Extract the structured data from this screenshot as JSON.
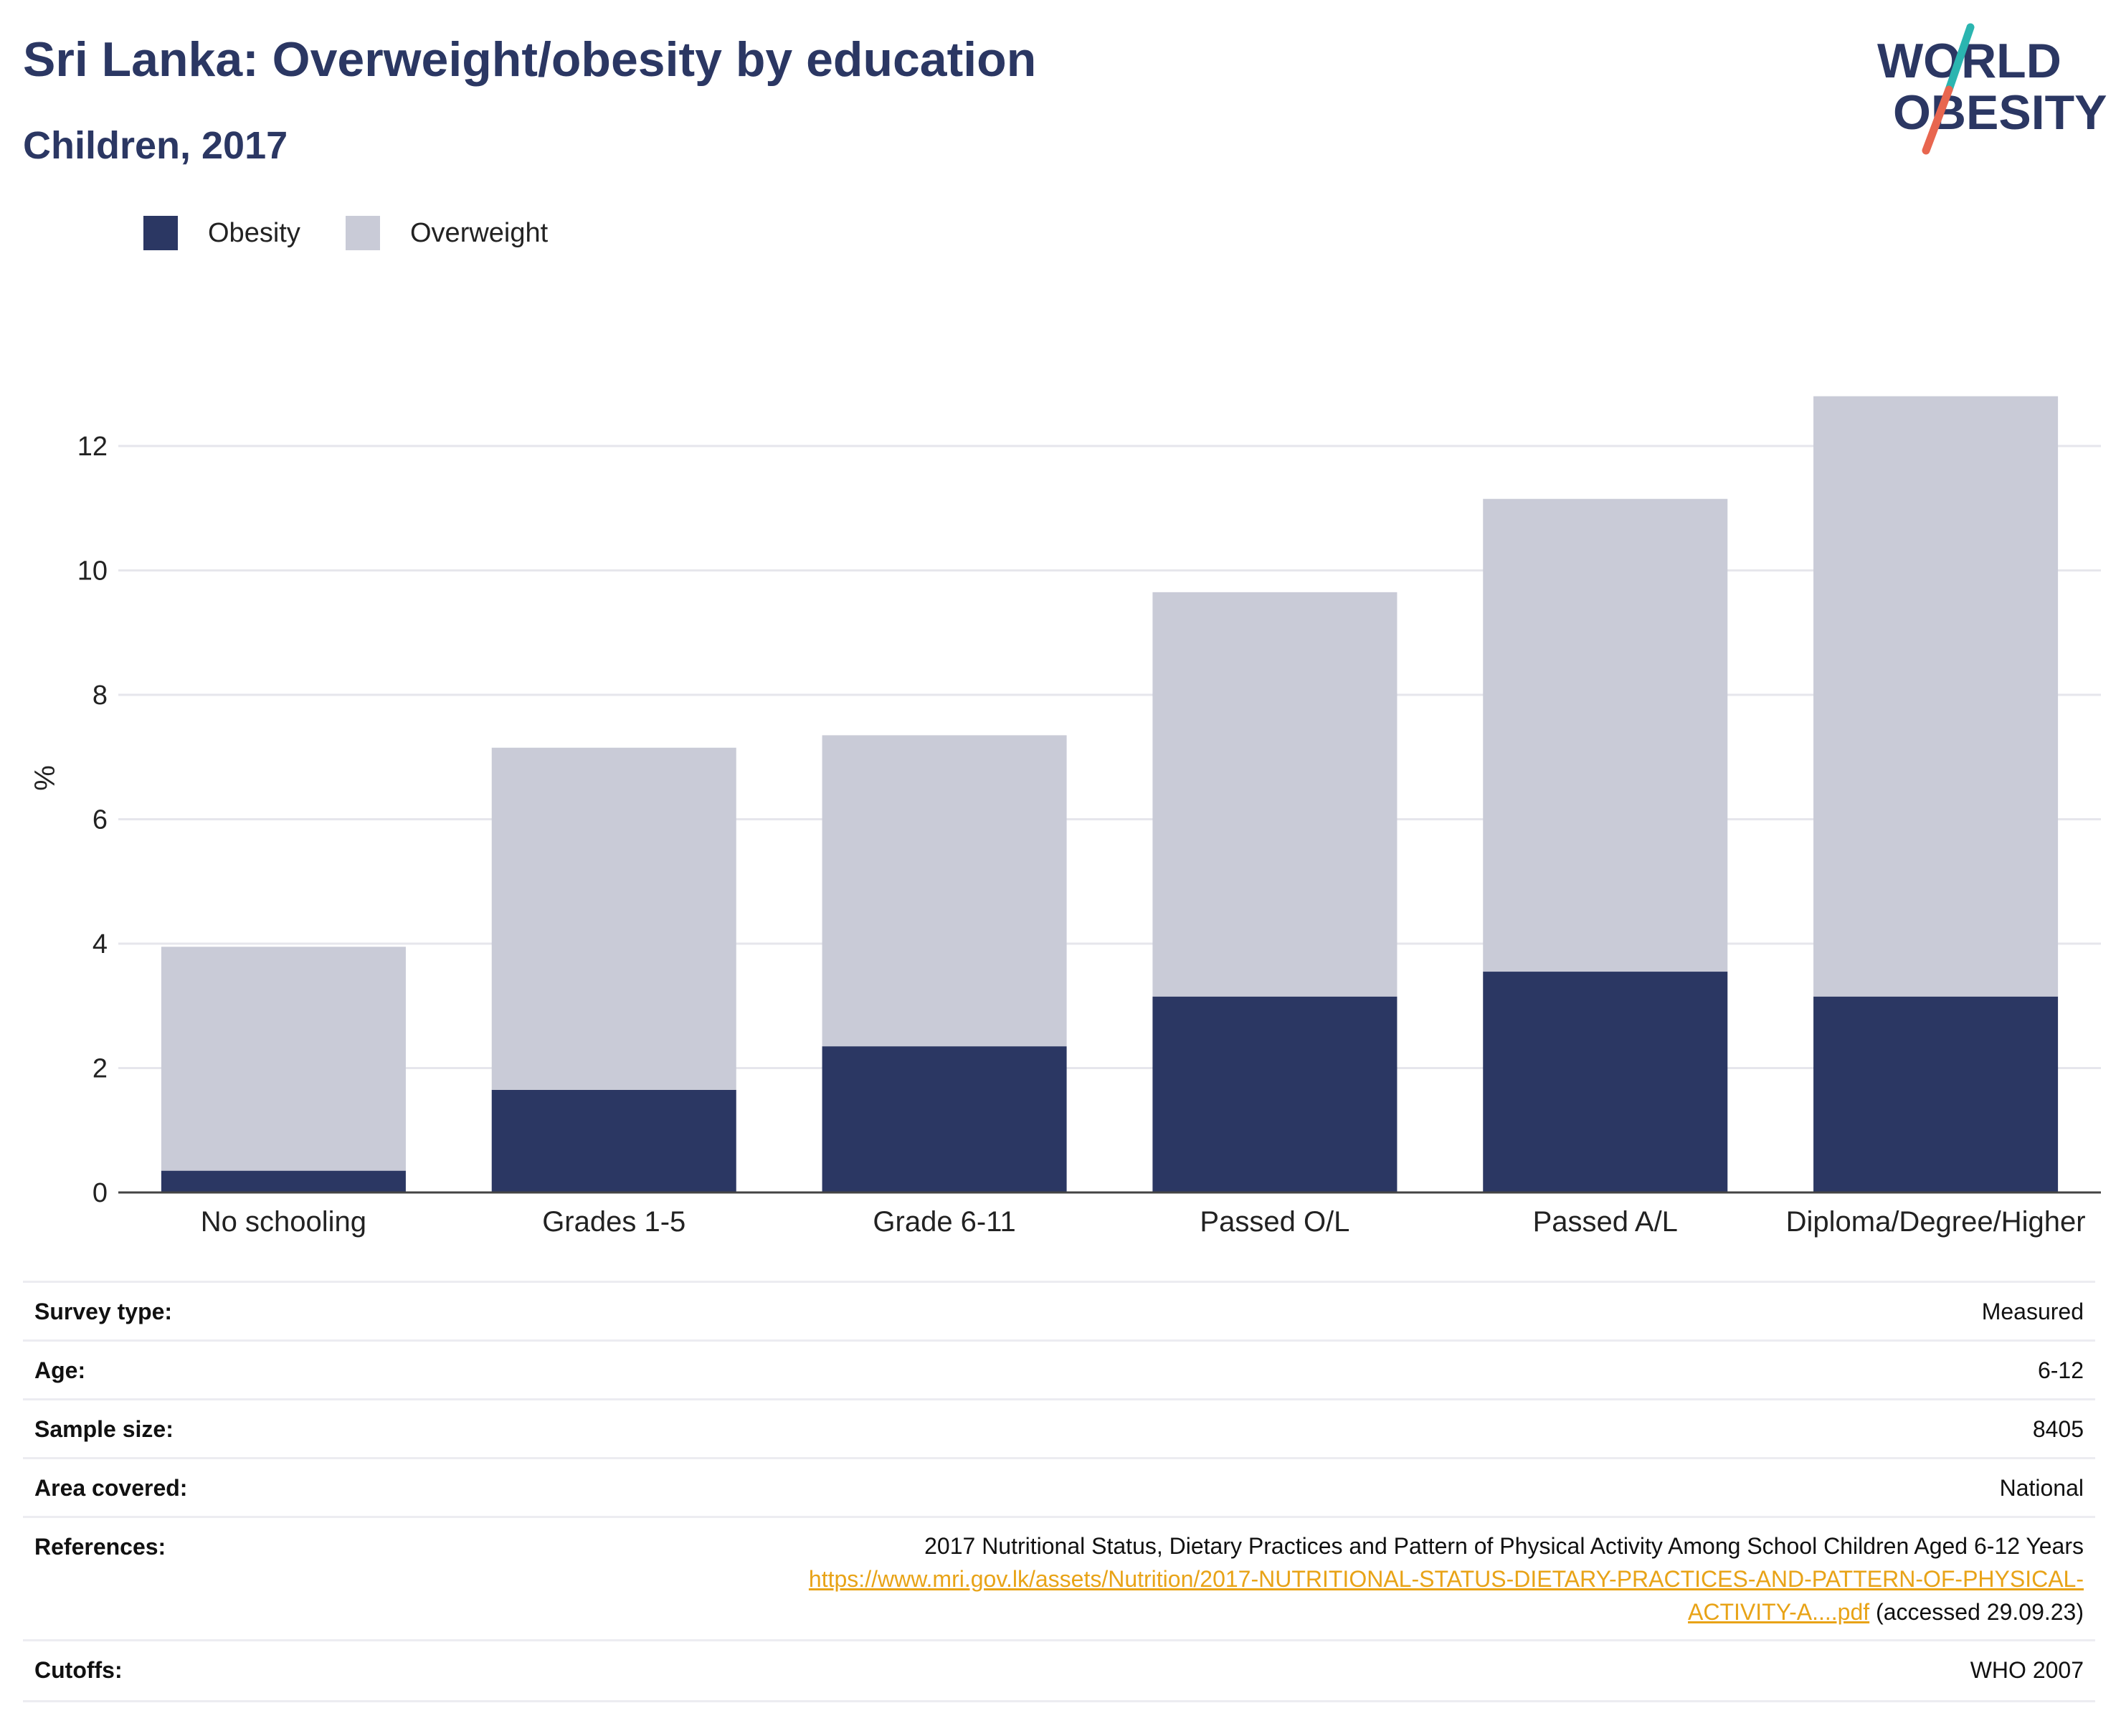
{
  "header": {
    "title": "Sri Lanka: Overweight/obesity by education",
    "subtitle": "Children, 2017"
  },
  "logo": {
    "line1": "WORLD",
    "line2": "OBESITY",
    "colors": {
      "text": "#2b3763",
      "slash_top": "#2bb5b0",
      "slash_bottom": "#e8664f"
    }
  },
  "legend": {
    "items": [
      {
        "label": "Obesity",
        "color": "#2b3763"
      },
      {
        "label": "Overweight",
        "color": "#c9cbd7"
      }
    ]
  },
  "chart_data": {
    "type": "bar",
    "stacked": true,
    "categories": [
      "No schooling",
      "Grades 1-5",
      "Grade 6-11",
      "Passed O/L",
      "Passed A/L",
      "Diploma/Degree/Higher"
    ],
    "series": [
      {
        "name": "Obesity",
        "color": "#2b3763",
        "values": [
          0.35,
          1.65,
          2.35,
          3.15,
          3.55,
          3.15
        ]
      },
      {
        "name": "Overweight",
        "color": "#c9cbd7",
        "values": [
          3.6,
          5.5,
          5.0,
          6.5,
          7.6,
          9.65
        ]
      }
    ],
    "title": "Sri Lanka: Overweight/obesity by education",
    "xlabel": "",
    "ylabel": "%",
    "ylim": [
      0,
      13
    ],
    "yticks": [
      0,
      2,
      4,
      6,
      8,
      10,
      12
    ],
    "grid": true,
    "legend_position": "top-left"
  },
  "meta": {
    "survey_type": {
      "label": "Survey type:",
      "value": "Measured"
    },
    "age": {
      "label": "Age:",
      "value": "6-12"
    },
    "sample_size": {
      "label": "Sample size:",
      "value": "8405"
    },
    "area_covered": {
      "label": "Area covered:",
      "value": "National"
    },
    "references": {
      "label": "References:",
      "text": "2017 Nutritional Status, Dietary Practices and Pattern of Physical Activity Among School Children Aged 6-12 Years",
      "link_line1": "https://www.mri.gov.lk/assets/Nutrition/2017-NUTRITIONAL-STATUS-DIETARY-PRACTICES-AND-PATTERN-OF-PHYSICAL-",
      "link_line2": "ACTIVITY-A....pdf",
      "accessed": "(accessed 29.09.23)"
    },
    "cutoffs": {
      "label": "Cutoffs:",
      "value": "WHO 2007"
    }
  }
}
